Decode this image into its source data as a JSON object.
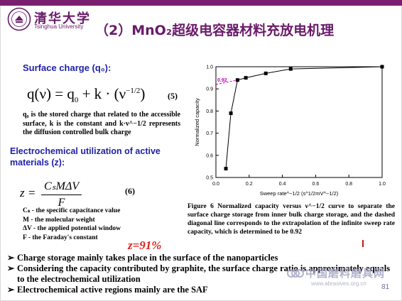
{
  "header": {
    "university_cn": "清华大学",
    "university_en": "Tsinghua University",
    "logo_text": "TSINGHUA UNIVERSITY",
    "logo_year": "1911",
    "title": "（2）MnO₂超级电容器材料充放电机理"
  },
  "surface_charge": {
    "heading": "Surface charge (q₀):",
    "equation_lhs": "q(ν) = q",
    "equation_mid": " + k · (ν",
    "equation_exp": "−1/2",
    "equation_sub": "0",
    "equation_end": ")",
    "equation_number": "(5)",
    "description": "q₀ is the stored charge that related to the accessible surface, k is the constant and k·ν^−1/2 represents the diffusion controlled bulk charge"
  },
  "utilization": {
    "heading": "Electrochemical utilization of active materials (z):",
    "z_label": "z =",
    "numerator": "CₛMΔV",
    "denominator": "F",
    "equation_number": "(6)",
    "definitions": [
      "Cₛ - the specific capacitance value",
      "M - the molecular weight",
      "ΔV - the applied potential window",
      "F - the Faraday's constant"
    ],
    "z_value": "z=91%"
  },
  "figure": {
    "caption": "Figure 6 Normalized capacity versus ν^−1/2 curve to separate the surface charge storage from inner bulk charge storage, and the dashed diagonal line corresponds to the extrapolation of the infinite sweep rate capacity, which is determined to be 0.92",
    "annotation": "0.92"
  },
  "chart_data": {
    "type": "line",
    "xlabel": "Sweep rate^−1/2 (s^1/2mV^−1/2)",
    "ylabel": "Normalized capacity",
    "xlim": [
      0.0,
      1.0
    ],
    "ylim": [
      0.5,
      1.0
    ],
    "x_ticks": [
      "0.0",
      "0.2",
      "0.4",
      "0.6",
      "0.8",
      "1.0"
    ],
    "y_ticks": [
      "0.5",
      "0.6",
      "0.7",
      "0.8",
      "0.9",
      "1.0"
    ],
    "x": [
      0.06,
      0.09,
      0.13,
      0.18,
      0.3,
      0.45,
      1.0
    ],
    "y": [
      0.54,
      0.79,
      0.94,
      0.95,
      0.97,
      0.99,
      1.0
    ],
    "marker": "square",
    "line_color": "#000000",
    "annotation_color": "#c000c0"
  },
  "bullets": [
    "Charge storage mainly takes place in the surface of the nanoparticles",
    "Considering the capacity contributed by graphite, the surface charge ratio is approximately equals to the electrochemical utilization",
    "Electrochemical active regions mainly are the SAF"
  ],
  "watermark": {
    "line1": "中国磨料磨具网",
    "line2": "www.abrasives.org.cn"
  },
  "page_number": "81",
  "colors": {
    "brand_purple": "#6a1b6a",
    "heading_blue": "#1f1fa8",
    "highlight_red": "#e0201b"
  }
}
